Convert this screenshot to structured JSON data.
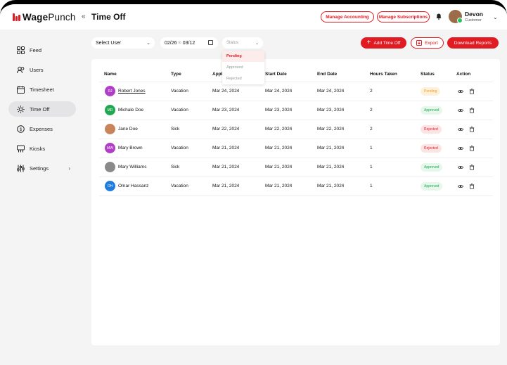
{
  "app": {
    "brand_bold": "Wage",
    "brand_light": "Punch",
    "page_title": "Time Off"
  },
  "header": {
    "manage_accounting": "Manage Accounting",
    "manage_subscriptions": "Manage Subscriptions",
    "user_name": "Devon",
    "user_role": "Customer"
  },
  "sidebar": {
    "items": [
      {
        "label": "Feed",
        "icon": "grid-icon"
      },
      {
        "label": "Users",
        "icon": "users-icon"
      },
      {
        "label": "Timesheet",
        "icon": "timesheet-icon"
      },
      {
        "label": "Time Off",
        "icon": "sun-icon",
        "active": true
      },
      {
        "label": "Expenses",
        "icon": "expenses-icon"
      },
      {
        "label": "Kiosks",
        "icon": "kiosk-icon"
      },
      {
        "label": "Settings",
        "icon": "settings-icon"
      }
    ]
  },
  "toolbar": {
    "select_user": "Select User",
    "date_from": "02/26",
    "date_sep": "to",
    "date_to": "03/12",
    "status_placeholder": "Status",
    "status_options": [
      "Pending",
      "Approved",
      "Rejected"
    ],
    "add_time_off": "Add Time Off",
    "export": "Export",
    "download_reports": "Download Reports"
  },
  "table": {
    "headers": [
      "Name",
      "Type",
      "Appl",
      "Start Date",
      "End Date",
      "Hours Taken",
      "Status",
      "Action"
    ],
    "rows": [
      {
        "initials": "RJ",
        "name": "Robert Jones",
        "type": "Vacation",
        "applied": "Mar 24, 2024",
        "start": "Mar 24, 2024",
        "end": "Mar 24, 2024",
        "hours": "2",
        "status": "Pending",
        "avatar_color": "#b03fc8"
      },
      {
        "initials": "MD",
        "name": "Michale Doe",
        "type": "Vacation",
        "applied": "Mar 23, 2024",
        "start": "Mar 23, 2024",
        "end": "Mar 23, 2024",
        "hours": "2",
        "status": "Approved",
        "avatar_color": "#1fa84f"
      },
      {
        "initials": "",
        "name": "Jane Doe",
        "type": "Sick",
        "applied": "Mar 22, 2024",
        "start": "Mar 22, 2024",
        "end": "Mar 22, 2024",
        "hours": "2",
        "status": "Rejected",
        "avatar_color": "#c9855a"
      },
      {
        "initials": "MW",
        "name": "Mary Brown",
        "type": "Vacation",
        "applied": "Mar 21, 2024",
        "start": "Mar 21, 2024",
        "end": "Mar 21, 2024",
        "hours": "1",
        "status": "Rejected",
        "avatar_color": "#b03fc8"
      },
      {
        "initials": "",
        "name": "Mary Williams",
        "type": "Sick",
        "applied": "Mar 21, 2024",
        "start": "Mar 21, 2024",
        "end": "Mar 21, 2024",
        "hours": "1",
        "status": "Approved",
        "avatar_color": "#8a8a8a"
      },
      {
        "initials": "OH",
        "name": "Omar Hassanz",
        "type": "Vacation",
        "applied": "Mar 21, 2024",
        "start": "Mar 21, 2024",
        "end": "Mar 21, 2024",
        "hours": "1",
        "status": "Approved",
        "avatar_color": "#1e7be0"
      }
    ]
  },
  "colors": {
    "brand_red": "#e21b23"
  }
}
